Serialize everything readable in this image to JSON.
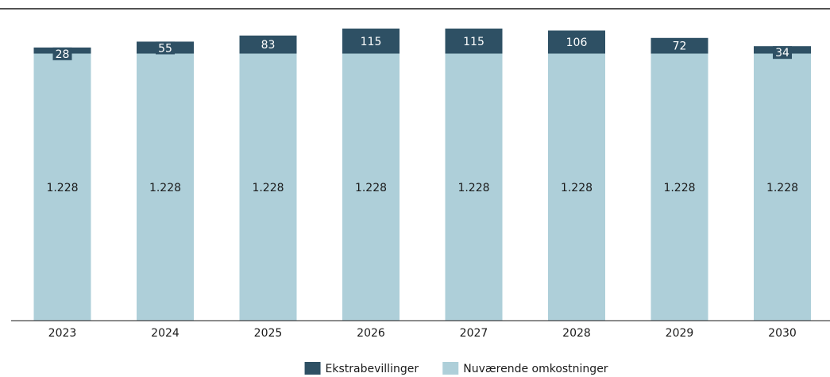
{
  "chart_data": {
    "type": "bar",
    "stacked": true,
    "categories": [
      "2023",
      "2024",
      "2025",
      "2026",
      "2027",
      "2028",
      "2029",
      "2030"
    ],
    "series": [
      {
        "name": "Nuværende omkostninger",
        "values": [
          1228,
          1228,
          1228,
          1228,
          1228,
          1228,
          1228,
          1228
        ],
        "labels": [
          "1.228",
          "1.228",
          "1.228",
          "1.228",
          "1.228",
          "1.228",
          "1.228",
          "1.228"
        ],
        "color": "#aecfd9"
      },
      {
        "name": "Ekstrabevillinger",
        "values": [
          28,
          55,
          83,
          115,
          115,
          106,
          72,
          34
        ],
        "labels": [
          "28",
          "55",
          "83",
          "115",
          "115",
          "106",
          "72",
          "34"
        ],
        "color": "#2e5064"
      }
    ],
    "ylim": [
      0,
      1343
    ],
    "grid": false,
    "legend_position": "bottom-center",
    "title": "",
    "xlabel": "",
    "ylabel": ""
  },
  "legend": {
    "items": [
      {
        "label": "Ekstrabevillinger",
        "color": "#2e5064"
      },
      {
        "label": "Nuværende omkostninger",
        "color": "#aecfd9"
      }
    ]
  }
}
